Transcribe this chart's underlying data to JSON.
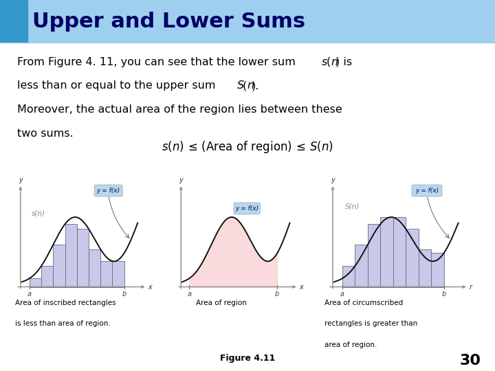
{
  "title": "Upper and Lower Sums",
  "title_bg_color": "#9ECFEF",
  "title_dark_bg_color": "#3399CC",
  "title_text_color": "#000066",
  "body_bg_color": "#FFFFFF",
  "fig_caption": "Figure 4.11",
  "page_number": "30",
  "sub_caption1_line1": "Area of inscribed rectangles",
  "sub_caption1_line2": "is less than area of region.",
  "sub_caption2": "Area of region",
  "sub_caption3_line1": "Area of circumscribed",
  "sub_caption3_line2": "rectangles is greater than",
  "sub_caption3_line3": "area of region.",
  "rect_fill_color": "#C8C8E8",
  "rect_edge_color": "#666688",
  "curve_color": "#111111",
  "area_fill_color": "#FADADD",
  "label_bubble_color": "#B8D8EE",
  "label_text_color": "#000066",
  "axes_color": "#888888",
  "n_rects": 8
}
